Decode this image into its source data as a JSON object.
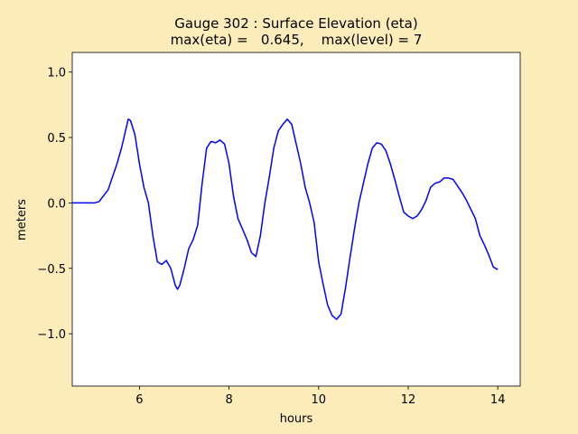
{
  "chart_data": {
    "type": "line",
    "title": [
      "Gauge 302 : Surface Elevation (eta)",
      "max(eta) =   0.645,    max(level) = 7"
    ],
    "x_label": "hours",
    "y_label": "meters",
    "x": [
      4.5,
      5.0,
      5.1,
      5.3,
      5.5,
      5.6,
      5.75,
      5.8,
      5.9,
      6.0,
      6.1,
      6.2,
      6.3,
      6.4,
      6.5,
      6.6,
      6.7,
      6.8,
      6.85,
      6.9,
      7.0,
      7.1,
      7.2,
      7.3,
      7.4,
      7.5,
      7.6,
      7.7,
      7.8,
      7.9,
      8.0,
      8.1,
      8.2,
      8.3,
      8.4,
      8.5,
      8.6,
      8.7,
      8.8,
      8.9,
      9.0,
      9.1,
      9.2,
      9.3,
      9.4,
      9.5,
      9.6,
      9.7,
      9.8,
      9.9,
      10.0,
      10.1,
      10.2,
      10.3,
      10.4,
      10.5,
      10.6,
      10.7,
      10.8,
      10.9,
      11.0,
      11.1,
      11.2,
      11.3,
      11.4,
      11.5,
      11.6,
      11.7,
      11.8,
      11.9,
      12.0,
      12.1,
      12.2,
      12.3,
      12.4,
      12.5,
      12.6,
      12.7,
      12.8,
      12.9,
      13.0,
      13.1,
      13.2,
      13.3,
      13.4,
      13.5,
      13.6,
      13.7,
      13.8,
      13.9,
      14.0
    ],
    "series": [
      {
        "color": "#0000ff",
        "values": [
          0.0,
          0.0,
          0.01,
          0.1,
          0.3,
          0.42,
          0.64,
          0.63,
          0.52,
          0.3,
          0.12,
          0.0,
          -0.25,
          -0.45,
          -0.47,
          -0.44,
          -0.5,
          -0.63,
          -0.66,
          -0.63,
          -0.5,
          -0.35,
          -0.28,
          -0.17,
          0.15,
          0.42,
          0.47,
          0.46,
          0.48,
          0.45,
          0.3,
          0.05,
          -0.12,
          -0.2,
          -0.28,
          -0.38,
          -0.41,
          -0.25,
          0.0,
          0.2,
          0.42,
          0.55,
          0.6,
          0.64,
          0.6,
          0.45,
          0.3,
          0.12,
          0.0,
          -0.15,
          -0.45,
          -0.62,
          -0.78,
          -0.86,
          -0.89,
          -0.85,
          -0.65,
          -0.42,
          -0.2,
          0.0,
          0.15,
          0.3,
          0.42,
          0.46,
          0.45,
          0.4,
          0.3,
          0.18,
          0.05,
          -0.07,
          -0.1,
          -0.12,
          -0.1,
          -0.05,
          0.02,
          0.12,
          0.15,
          0.16,
          0.19,
          0.19,
          0.18,
          0.13,
          0.08,
          0.02,
          -0.05,
          -0.12,
          -0.25,
          -0.32,
          -0.4,
          -0.49,
          -0.51
        ]
      }
    ],
    "xlim": [
      4.5,
      14.5
    ],
    "xticks": [
      6,
      8,
      10,
      12,
      14
    ],
    "ylim": [
      -1.4,
      1.15
    ],
    "yticks": [
      {
        "value": -1.0,
        "label": "−1.0"
      },
      {
        "value": -0.5,
        "label": "−0.5"
      },
      {
        "value": 0.0,
        "label": "0.0"
      },
      {
        "value": 0.5,
        "label": "0.5"
      },
      {
        "value": 1.0,
        "label": "1.0"
      }
    ]
  }
}
